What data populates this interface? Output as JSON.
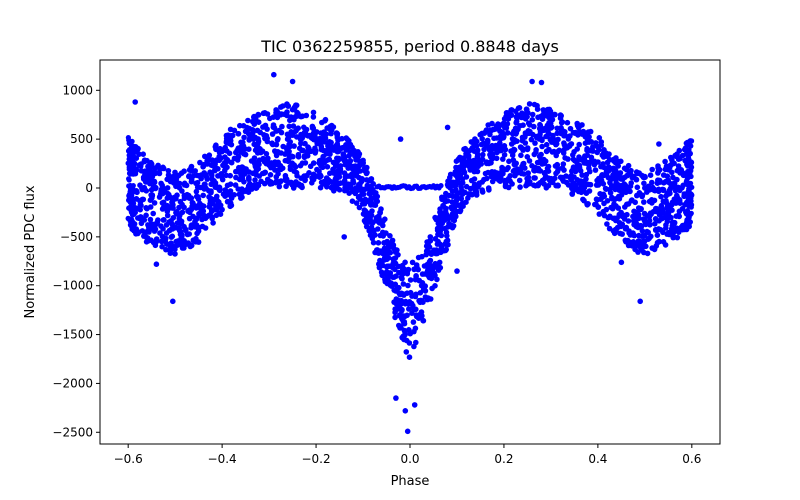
{
  "chart_data": {
    "type": "scatter",
    "title": "TIC 0362259855, period 0.8848 days",
    "xlabel": "Phase",
    "ylabel": "Normalized PDC flux",
    "xlim": [
      -0.66,
      0.66
    ],
    "ylim": [
      -2620,
      1310
    ],
    "x_ticks": [
      -0.6,
      -0.4,
      -0.2,
      0.0,
      0.2,
      0.4,
      0.6
    ],
    "x_tick_labels": [
      "−0.6",
      "−0.4",
      "−0.2",
      "0.0",
      "0.2",
      "0.4",
      "0.6"
    ],
    "y_ticks": [
      -2500,
      -2000,
      -1500,
      -1000,
      -500,
      0,
      500,
      1000
    ],
    "y_tick_labels": [
      "−2500",
      "−2000",
      "−1500",
      "−1000",
      "−500",
      "0",
      "500",
      "1000"
    ],
    "grid": false,
    "series": [
      {
        "name": "flux",
        "color": "#0000ff",
        "x_range": [
          -0.6,
          0.6
        ],
        "envelope": {
          "x": [
            -0.6,
            -0.58,
            -0.55,
            -0.52,
            -0.5,
            -0.48,
            -0.45,
            -0.42,
            -0.4,
            -0.35,
            -0.3,
            -0.26,
            -0.22,
            -0.18,
            -0.15,
            -0.12,
            -0.1,
            -0.08,
            -0.06,
            -0.04,
            -0.02,
            0.0,
            0.02,
            0.04,
            0.06,
            0.08,
            0.1,
            0.12,
            0.15,
            0.18,
            0.22,
            0.26,
            0.3,
            0.35,
            0.4,
            0.42,
            0.45,
            0.48,
            0.5,
            0.52,
            0.55,
            0.58,
            0.6
          ],
          "upper": [
            520,
            420,
            300,
            200,
            160,
            180,
            280,
            420,
            560,
            700,
            800,
            870,
            830,
            700,
            580,
            440,
            300,
            80,
            -200,
            -500,
            -700,
            -780,
            -700,
            -500,
            -200,
            80,
            300,
            440,
            580,
            700,
            830,
            870,
            800,
            700,
            560,
            420,
            280,
            180,
            160,
            200,
            300,
            420,
            520
          ],
          "lower": [
            -400,
            -500,
            -580,
            -650,
            -700,
            -650,
            -560,
            -400,
            -250,
            -80,
            0,
            0,
            0,
            0,
            -50,
            -150,
            -300,
            -600,
            -900,
            -1200,
            -1500,
            -1800,
            -1500,
            -1200,
            -900,
            -600,
            -300,
            -150,
            -50,
            0,
            0,
            0,
            0,
            -80,
            -250,
            -400,
            -560,
            -650,
            -700,
            -650,
            -580,
            -500,
            -400
          ]
        },
        "plateau": {
          "x": [
            -0.07,
            0.07
          ],
          "y": 10
        },
        "outliers": [
          {
            "x": -0.29,
            "y": 1160
          },
          {
            "x": 0.26,
            "y": 1090
          },
          {
            "x": 0.28,
            "y": 1080
          },
          {
            "x": -0.25,
            "y": 1090
          },
          {
            "x": -0.585,
            "y": 880
          },
          {
            "x": 0.53,
            "y": 450
          },
          {
            "x": -0.505,
            "y": -1160
          },
          {
            "x": 0.49,
            "y": -1160
          },
          {
            "x": -0.005,
            "y": -2490
          },
          {
            "x": -0.03,
            "y": -2150
          },
          {
            "x": -0.01,
            "y": -2280
          },
          {
            "x": 0.01,
            "y": -2220
          },
          {
            "x": -0.02,
            "y": 500
          },
          {
            "x": 0.08,
            "y": 620
          },
          {
            "x": -0.54,
            "y": -780
          },
          {
            "x": 0.45,
            "y": -760
          },
          {
            "x": -0.14,
            "y": -500
          },
          {
            "x": 0.1,
            "y": -850
          }
        ]
      }
    ]
  }
}
